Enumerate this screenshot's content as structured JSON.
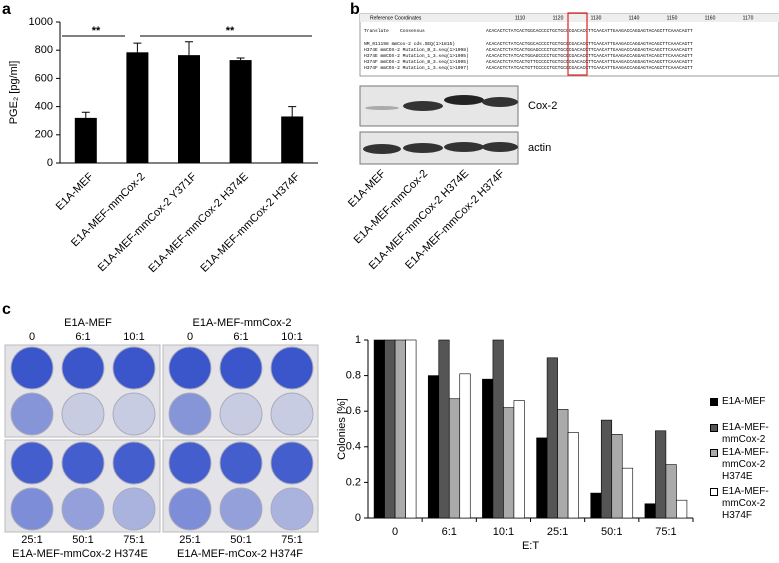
{
  "panel_labels": [
    "a",
    "b",
    "c"
  ],
  "chart_data": [
    {
      "type": "bar",
      "y_label": "PGE₂ [pg/ml]",
      "categories": [
        "E1A-MEF",
        "E1A-MEF-mmCox-2",
        "E1A-MEF-mmCox-2 Y371F",
        "E1A-MEF-mmCox-2 H374E",
        "E1A-MEF-mmCox-2 H374F"
      ],
      "values": [
        320,
        785,
        765,
        730,
        330
      ],
      "errors": [
        40,
        65,
        95,
        15,
        70
      ],
      "color": "#000000",
      "ylim": [
        0,
        1000
      ],
      "yticks": [
        0,
        200,
        400,
        600,
        800,
        1000
      ],
      "annotations": [
        "**",
        "**"
      ]
    },
    {
      "type": "grouped_bar",
      "x_label": "E:T",
      "y_label": "Colonies [%]",
      "categories": [
        "0",
        "6:1",
        "10:1",
        "25:1",
        "50:1",
        "75:1"
      ],
      "series": [
        {
          "name": "E1A-MEF",
          "color": "#000000",
          "values": [
            1,
            0.8,
            0.78,
            0.45,
            0.14,
            0.08
          ]
        },
        {
          "name": "E1A-MEF-mmCox-2",
          "color": "#555555",
          "values": [
            1,
            1,
            1,
            0.9,
            0.55,
            0.49
          ]
        },
        {
          "name": "E1A-MEF-mmCox-2 H374E",
          "color": "#aaaaaa",
          "values": [
            1,
            0.67,
            0.62,
            0.61,
            0.47,
            0.3
          ]
        },
        {
          "name": "E1A-MEF-mmCox-2 H374F",
          "color": "#ffffff",
          "values": [
            1,
            0.81,
            0.66,
            0.48,
            0.28,
            0.1
          ]
        }
      ],
      "ylim": [
        0,
        1
      ],
      "yticks": [
        0,
        0.2,
        0.4,
        0.6,
        0.8,
        1
      ],
      "legend": "right"
    }
  ],
  "alignment": {
    "header": "Reference Coordinates",
    "ruler": [
      1110,
      1120,
      1130,
      1140,
      1150,
      1160,
      1170
    ],
    "translate": "Translate",
    "consensus": "Consensus",
    "consensus_seq": "ACACACTCTATCACTGGCACCCCTGCTGCCCGACACCTTCAACATTGAAGACCAGGAGTACAGCTTCAAACAGTT",
    "rows": [
      {
        "name": "NM_011198 mmCox-2 cds.SEQ(1>1815)",
        "seq": "ACACACTCTATCACTGGCACCCCTGCTGCCCGACACCTTCAACATTGAAGACCAGGAGTACAGCTTCAAACAGTT"
      },
      {
        "name": "H374E mmCOX-2 Mutation_B_3.seq(1>1098)",
        "seq": "ACACACTCTATCACTGGAGCCCCTGCTGCCCGACACCTTCAACATTGAAGACCAGGAGTACAGCTTCAAACAGTT"
      },
      {
        "name": "H374E mmCOX-2 Mutation_1_3.seq(1>1095)",
        "seq": "ACACACTCTATCACTGGAGCCCCTGCTGCCCGACACCTTCAACATTGAAGACCAGGAGTACAGCTTCAAACAGTT"
      },
      {
        "name": "H374F mmCOX-2 Mutation_B_3.seq(1>1095)",
        "seq": "ACACACTCTATCACTGTTCCCCCTGCTGCCCGACACCTTCAACATTGAAGACCAGGAGTACAGCTTCAAACAGTT"
      },
      {
        "name": "H374F mmCOX-2 Mutation_1_3.seq(1>1097)",
        "seq": "ACACACTCTATCACTGTTCCCCCTGCTGCCCGACACCTTCAACATTGAAGACCAGGAGTACAGCTTCAAACAGTT"
      }
    ]
  },
  "blot": {
    "bands": [
      "Cox-2",
      "actin"
    ],
    "lanes": [
      "E1A-MEF",
      "E1A-MEF-mmCox-2",
      "E1A-MEF-mmCox-2 H374E",
      "E1A-MEF-mmCox-2 H374F"
    ]
  },
  "plates": {
    "top_titles": [
      "E1A-MEF",
      "E1A-MEF-mmCox-2"
    ],
    "top_ratios": [
      "0",
      "6:1",
      "10:1"
    ],
    "bottom_ratios": [
      "25:1",
      "50:1",
      "75:1"
    ],
    "bottom_titles": [
      "E1A-MEF-mmCox-2 H374E",
      "E1A-MEF-mCox-2 H374F"
    ]
  }
}
